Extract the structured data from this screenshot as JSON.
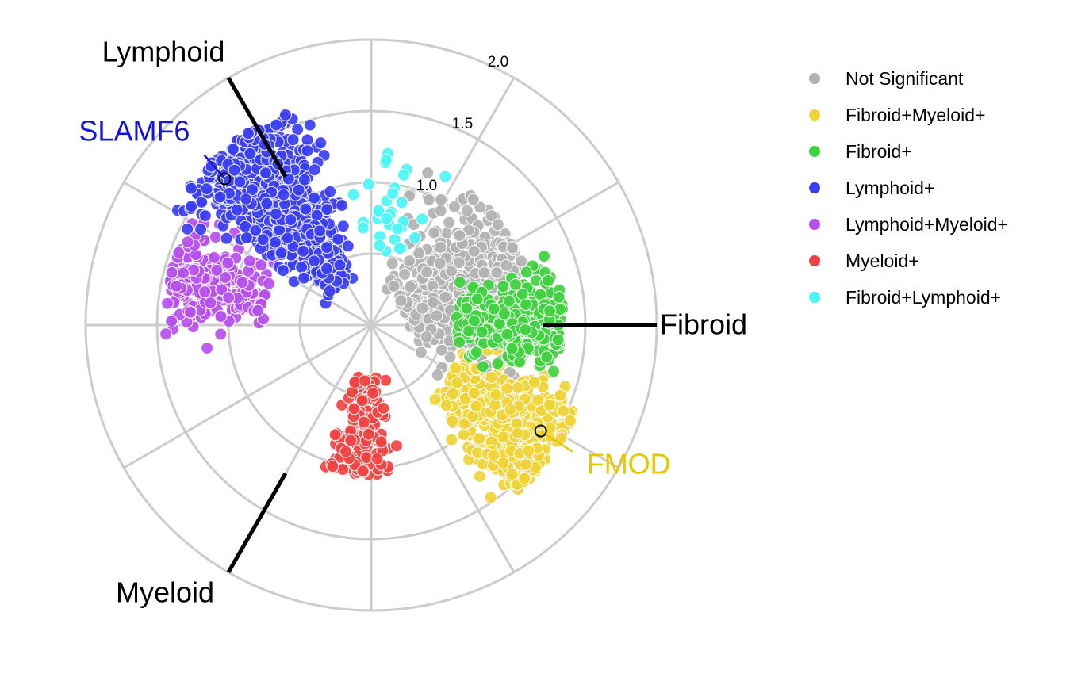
{
  "chart_data": {
    "type": "scatter",
    "subtype": "radial volcano (polar) plot",
    "axes": [
      {
        "name": "Fibroid",
        "angle_deg": 0
      },
      {
        "name": "Lymphoid",
        "angle_deg": 120
      },
      {
        "name": "Myeloid",
        "angle_deg": 240
      }
    ],
    "radial_ticks": [
      "1.0",
      "1.5",
      "2.0"
    ],
    "radial_tick_values": [
      1.0,
      1.5,
      2.0
    ],
    "radial_range": [
      0,
      2.0
    ],
    "grid": true,
    "legend_position": "right",
    "series": [
      {
        "name": "Not Significant",
        "color": "#b2b2b2",
        "center_angle_deg": 20,
        "angle_spread_deg": 75,
        "r_range": [
          0.25,
          1.15
        ],
        "count": 520
      },
      {
        "name": "Fibroid+Myeloid+",
        "color": "#f0d235",
        "center_angle_deg": -35,
        "angle_spread_deg": 28,
        "r_range": [
          0.65,
          1.55
        ],
        "count": 460
      },
      {
        "name": "Fibroid+",
        "color": "#3fd13f",
        "center_angle_deg": 2,
        "angle_spread_deg": 28,
        "r_range": [
          0.6,
          1.35
        ],
        "count": 300
      },
      {
        "name": "Lymphoid+",
        "color": "#3a3ef2",
        "center_angle_deg": 128,
        "angle_spread_deg": 32,
        "r_range": [
          0.35,
          1.6
        ],
        "count": 760
      },
      {
        "name": "Lymphoid+Myeloid+",
        "color": "#b550ee",
        "center_angle_deg": 165,
        "angle_spread_deg": 26,
        "r_range": [
          0.75,
          1.45
        ],
        "count": 230
      },
      {
        "name": "Myeloid+",
        "color": "#f24141",
        "center_angle_deg": 265,
        "angle_spread_deg": 25,
        "r_range": [
          0.35,
          1.05
        ],
        "count": 160
      },
      {
        "name": "Fibroid+Lymphoid+",
        "color": "#4af5f5",
        "center_angle_deg": 80,
        "angle_spread_deg": 30,
        "r_range": [
          0.5,
          1.25
        ],
        "count": 32
      }
    ],
    "labeled_points": [
      {
        "label": "SLAMF6",
        "color": "#1414e0",
        "angle_deg": 135,
        "r": 1.45
      },
      {
        "label": "FMOD",
        "color": "#e6c800",
        "angle_deg": -32,
        "r": 1.4
      }
    ]
  }
}
